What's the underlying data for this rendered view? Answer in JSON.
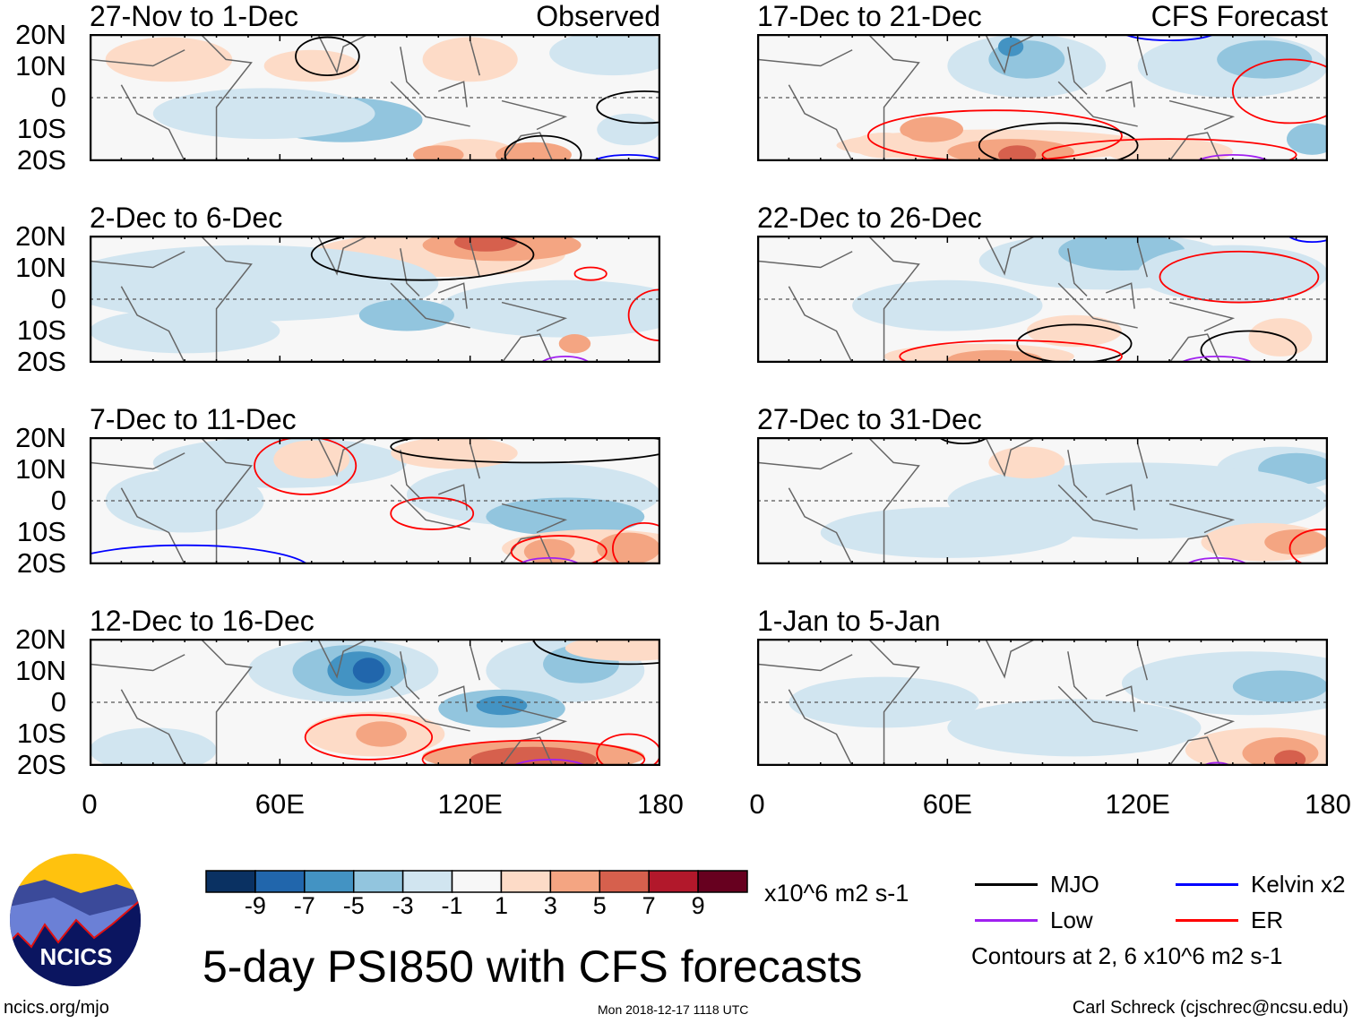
{
  "title": "5-day PSI850 with CFS forecasts",
  "column_labels": {
    "left": "Observed",
    "right": "CFS Forecast"
  },
  "lat_ticks": [
    "20N",
    "10N",
    "0",
    "10S",
    "20S"
  ],
  "lon_ticks": [
    "0",
    "60E",
    "120E",
    "180"
  ],
  "colorbar": {
    "ticks": [
      "-9",
      "-7",
      "-5",
      "-3",
      "-1",
      "1",
      "3",
      "5",
      "7",
      "9"
    ],
    "units": "x10^6 m2 s-1",
    "colors": [
      "#0a3162",
      "#2166ac",
      "#4393c3",
      "#92c5de",
      "#d1e5f0",
      "#f7f7f7",
      "#fddbc7",
      "#f4a582",
      "#d6604d",
      "#b2182b",
      "#67001f"
    ]
  },
  "legend": {
    "items": [
      {
        "label": "MJO",
        "color": "#000000"
      },
      {
        "label": "Kelvin x2",
        "color": "#0000ff"
      },
      {
        "label": "Low",
        "color": "#a020f0"
      },
      {
        "label": "ER",
        "color": "#ff0000"
      }
    ],
    "note": "Contours at 2, 6 x10^6 m2 s-1"
  },
  "logo": {
    "text": "NCICS"
  },
  "footer": {
    "left": "ncics.org/mjo",
    "center": "Mon 2018-12-17 1118 UTC",
    "right": "Carl Schreck (cjschrec@ncsu.edu)"
  },
  "chart_data": {
    "type": "heatmap",
    "xlim": [
      0,
      180
    ],
    "ylim": [
      -20,
      20
    ],
    "panels": [
      {
        "title": "27-Nov to 1-Dec",
        "col": "left",
        "row": 0,
        "blobs": [
          [
            25,
            12,
            20,
            7,
            6
          ],
          [
            70,
            10,
            15,
            5,
            6
          ],
          [
            120,
            12,
            15,
            7,
            6
          ],
          [
            165,
            14,
            20,
            7,
            4
          ],
          [
            80,
            -7,
            25,
            7,
            3
          ],
          [
            55,
            -5,
            35,
            8,
            4
          ],
          [
            120,
            -18,
            15,
            5,
            6
          ],
          [
            110,
            -18,
            8,
            3,
            7
          ],
          [
            140,
            -18,
            12,
            4,
            7
          ],
          [
            170,
            -10,
            10,
            5,
            4
          ]
        ],
        "contours": [
          [
            75,
            13,
            10,
            6,
            "#000000"
          ],
          [
            175,
            -3,
            15,
            5,
            "#000000"
          ],
          [
            143,
            -18,
            12,
            6,
            "#000000"
          ],
          [
            170,
            -21,
            12,
            3,
            "#0000ff"
          ]
        ]
      },
      {
        "title": "17-Dec to 21-Dec",
        "col": "right",
        "row": 0,
        "blobs": [
          [
            85,
            10,
            25,
            10,
            4
          ],
          [
            85,
            12,
            12,
            6,
            3
          ],
          [
            80,
            16,
            4,
            3,
            2
          ],
          [
            150,
            10,
            30,
            10,
            4
          ],
          [
            160,
            12,
            15,
            6,
            3
          ],
          [
            75,
            -15,
            50,
            5,
            6
          ],
          [
            80,
            -17,
            20,
            4,
            7
          ],
          [
            82,
            -18,
            6,
            3,
            8
          ],
          [
            55,
            -10,
            10,
            4,
            7
          ],
          [
            130,
            -17,
            20,
            4,
            6
          ],
          [
            175,
            -13,
            8,
            5,
            3
          ],
          [
            40,
            -15,
            10,
            4,
            6
          ]
        ],
        "contours": [
          [
            75,
            -12,
            40,
            8,
            "#ff0000"
          ],
          [
            95,
            -15,
            25,
            7,
            "#000000"
          ],
          [
            168,
            2,
            18,
            10,
            "#ff0000"
          ],
          [
            130,
            -18,
            40,
            5,
            "#ff0000"
          ],
          [
            150,
            -21,
            12,
            3,
            "#a020f0"
          ],
          [
            130,
            21,
            15,
            3,
            "#0000ff"
          ]
        ]
      },
      {
        "title": "2-Dec to 6-Dec",
        "col": "left",
        "row": 1,
        "blobs": [
          [
            110,
            14,
            40,
            7,
            6
          ],
          [
            130,
            17,
            25,
            5,
            7
          ],
          [
            125,
            18,
            10,
            3,
            8
          ],
          [
            50,
            5,
            60,
            12,
            4
          ],
          [
            150,
            -3,
            40,
            9,
            4
          ],
          [
            30,
            -10,
            30,
            7,
            4
          ],
          [
            153,
            -14,
            5,
            3,
            7
          ],
          [
            100,
            -5,
            15,
            5,
            3
          ]
        ],
        "contours": [
          [
            105,
            14,
            35,
            8,
            "#000000"
          ],
          [
            158,
            8,
            5,
            2,
            "#ff0000"
          ],
          [
            180,
            -5,
            10,
            8,
            "#ff0000"
          ],
          [
            150,
            -21,
            8,
            3,
            "#a020f0"
          ]
        ]
      },
      {
        "title": "22-Dec to 26-Dec",
        "col": "right",
        "row": 1,
        "blobs": [
          [
            110,
            12,
            40,
            9,
            4
          ],
          [
            115,
            15,
            20,
            6,
            3
          ],
          [
            60,
            -2,
            30,
            8,
            4
          ],
          [
            150,
            8,
            30,
            9,
            4
          ],
          [
            70,
            -18,
            30,
            4,
            6
          ],
          [
            75,
            -19,
            15,
            3,
            7
          ],
          [
            165,
            -12,
            10,
            6,
            6
          ],
          [
            100,
            -10,
            15,
            5,
            6
          ]
        ],
        "contours": [
          [
            152,
            7,
            25,
            8,
            "#ff0000"
          ],
          [
            100,
            -14,
            18,
            6,
            "#000000"
          ],
          [
            155,
            -16,
            15,
            6,
            "#000000"
          ],
          [
            80,
            -18,
            35,
            5,
            "#ff0000"
          ],
          [
            145,
            -21,
            12,
            3,
            "#a020f0"
          ],
          [
            175,
            21,
            8,
            3,
            "#0000ff"
          ]
        ]
      },
      {
        "title": "7-Dec to 11-Dec",
        "col": "left",
        "row": 2,
        "blobs": [
          [
            60,
            12,
            40,
            8,
            4
          ],
          [
            70,
            13,
            12,
            6,
            6
          ],
          [
            140,
            2,
            40,
            10,
            4
          ],
          [
            150,
            -5,
            25,
            6,
            3
          ],
          [
            30,
            0,
            25,
            10,
            4
          ],
          [
            160,
            -15,
            30,
            6,
            6
          ],
          [
            170,
            -15,
            10,
            5,
            7
          ],
          [
            145,
            -16,
            8,
            4,
            7
          ],
          [
            115,
            15,
            20,
            5,
            6
          ]
        ],
        "contours": [
          [
            68,
            11,
            16,
            9,
            "#ff0000"
          ],
          [
            108,
            -4,
            13,
            5,
            "#ff0000"
          ],
          [
            148,
            -16,
            15,
            5,
            "#ff0000"
          ],
          [
            175,
            -15,
            10,
            8,
            "#ff0000"
          ],
          [
            140,
            17,
            45,
            5,
            "#000000"
          ],
          [
            30,
            -22,
            40,
            8,
            "#0000ff"
          ],
          [
            145,
            -21,
            10,
            3,
            "#a020f0"
          ]
        ]
      },
      {
        "title": "27-Dec to 31-Dec",
        "col": "right",
        "row": 2,
        "blobs": [
          [
            165,
            10,
            20,
            7,
            4
          ],
          [
            170,
            10,
            12,
            5,
            3
          ],
          [
            120,
            0,
            60,
            12,
            4
          ],
          [
            60,
            -10,
            40,
            8,
            4
          ],
          [
            160,
            -13,
            20,
            6,
            6
          ],
          [
            170,
            -13,
            10,
            4,
            7
          ],
          [
            85,
            12,
            12,
            5,
            6
          ]
        ],
        "contours": [
          [
            65,
            21,
            8,
            3,
            "#000000"
          ],
          [
            178,
            -15,
            10,
            6,
            "#ff0000"
          ],
          [
            145,
            -21,
            10,
            3,
            "#a020f0"
          ]
        ]
      },
      {
        "title": "12-Dec to 16-Dec",
        "col": "left",
        "row": 3,
        "blobs": [
          [
            80,
            10,
            30,
            10,
            4
          ],
          [
            82,
            10,
            18,
            8,
            3
          ],
          [
            85,
            10,
            10,
            6,
            2
          ],
          [
            88,
            10,
            5,
            4,
            1
          ],
          [
            150,
            10,
            25,
            10,
            4
          ],
          [
            155,
            12,
            12,
            6,
            3
          ],
          [
            130,
            -2,
            20,
            6,
            3
          ],
          [
            130,
            -1,
            8,
            3,
            2
          ],
          [
            90,
            -10,
            22,
            7,
            6
          ],
          [
            92,
            -10,
            8,
            4,
            7
          ],
          [
            140,
            -17,
            35,
            5,
            7
          ],
          [
            140,
            -18,
            20,
            4,
            8
          ],
          [
            20,
            -15,
            20,
            7,
            4
          ],
          [
            170,
            17,
            20,
            4,
            6
          ]
        ],
        "contours": [
          [
            88,
            -11,
            20,
            7,
            "#ff0000"
          ],
          [
            140,
            -18,
            35,
            6,
            "#ff0000"
          ],
          [
            170,
            -16,
            10,
            6,
            "#ff0000"
          ],
          [
            170,
            20,
            30,
            8,
            "#000000"
          ],
          [
            145,
            -21,
            12,
            3,
            "#a020f0"
          ]
        ]
      },
      {
        "title": "1-Jan to 5-Jan",
        "col": "right",
        "row": 3,
        "blobs": [
          [
            155,
            6,
            40,
            10,
            4
          ],
          [
            165,
            5,
            15,
            5,
            3
          ],
          [
            100,
            -8,
            40,
            9,
            4
          ],
          [
            40,
            0,
            30,
            8,
            4
          ],
          [
            160,
            -15,
            25,
            7,
            6
          ],
          [
            165,
            -16,
            12,
            5,
            7
          ],
          [
            168,
            -18,
            5,
            3,
            8
          ]
        ],
        "contours": [
          [
            145,
            -21,
            5,
            2,
            "#a020f0"
          ]
        ]
      }
    ]
  }
}
